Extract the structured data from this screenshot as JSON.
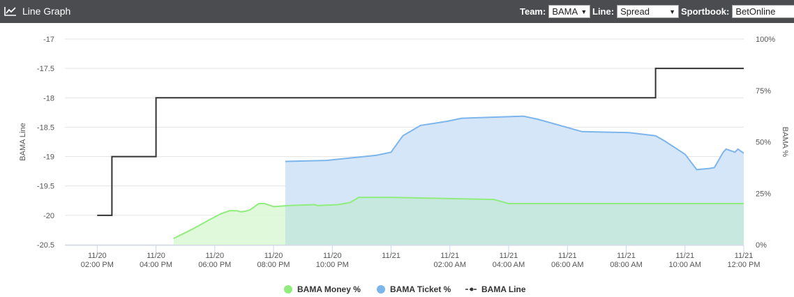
{
  "header": {
    "title": "Line Graph",
    "team_label": "Team:",
    "team_value": "BAMA",
    "line_label": "Line:",
    "line_value": "Spread",
    "sportsbook_label": "Sportbook:",
    "sportsbook_value": "BetOnline"
  },
  "colors": {
    "header_bg": "#4a4c50",
    "money": "#90ed7d",
    "money_fill": "#daf8d4",
    "ticket": "#7cb5ec",
    "ticket_fill": "#d4e6f8",
    "overlap_fill": "#c6e8df",
    "line": "#333333"
  },
  "chart_data": {
    "type": "line",
    "ylabel_left": "BAMA Line",
    "ylabel_right": "BAMA %",
    "y_left_ticks": [
      "-17",
      "-17.5",
      "-18",
      "-18.5",
      "-19",
      "-19.5",
      "-20",
      "-20.5"
    ],
    "y_left_range": [
      -20.5,
      -17
    ],
    "y_right_ticks": [
      "100%",
      "75%",
      "50%",
      "25%",
      "0%"
    ],
    "y_right_range": [
      0,
      100
    ],
    "x_range_hours": [
      12.9,
      36.0
    ],
    "x_ticks": [
      {
        "date": "11/20",
        "time": "02:00 PM",
        "h": 14
      },
      {
        "date": "11/20",
        "time": "04:00 PM",
        "h": 16
      },
      {
        "date": "11/20",
        "time": "06:00 PM",
        "h": 18
      },
      {
        "date": "11/20",
        "time": "08:00 PM",
        "h": 20
      },
      {
        "date": "11/20",
        "time": "10:00 PM",
        "h": 22
      },
      {
        "date": "11/21",
        "time": "",
        "h": 24
      },
      {
        "date": "11/21",
        "time": "02:00 AM",
        "h": 26
      },
      {
        "date": "11/21",
        "time": "04:00 AM",
        "h": 28
      },
      {
        "date": "11/21",
        "time": "06:00 AM",
        "h": 30
      },
      {
        "date": "11/21",
        "time": "08:00 AM",
        "h": 32
      },
      {
        "date": "11/21",
        "time": "10:00 AM",
        "h": 34
      },
      {
        "date": "11/21",
        "time": "12:00 PM",
        "h": 36
      }
    ],
    "series": [
      {
        "name": "BAMA Money %",
        "axis": "right",
        "points": [
          [
            16.6,
            3
          ],
          [
            17.3,
            8
          ],
          [
            17.8,
            12
          ],
          [
            18.2,
            15
          ],
          [
            18.5,
            16.5
          ],
          [
            18.75,
            16.5
          ],
          [
            18.9,
            16
          ],
          [
            19.05,
            16.3
          ],
          [
            19.2,
            17
          ],
          [
            19.5,
            20
          ],
          [
            19.7,
            20
          ],
          [
            20.0,
            18.5
          ],
          [
            20.5,
            19
          ],
          [
            21.4,
            19.5
          ],
          [
            21.5,
            19
          ],
          [
            22.2,
            19.5
          ],
          [
            22.6,
            20.5
          ],
          [
            22.9,
            23
          ],
          [
            24.0,
            23
          ],
          [
            27.5,
            22
          ],
          [
            28.0,
            20
          ],
          [
            36.0,
            20
          ]
        ]
      },
      {
        "name": "BAMA Ticket %",
        "axis": "right",
        "points": [
          [
            20.4,
            40.5
          ],
          [
            21.8,
            41
          ],
          [
            23.5,
            43.5
          ],
          [
            24.0,
            45
          ],
          [
            24.4,
            53
          ],
          [
            25.0,
            58
          ],
          [
            25.9,
            60
          ],
          [
            26.4,
            61.5
          ],
          [
            28.5,
            62.5
          ],
          [
            29.0,
            61
          ],
          [
            30.5,
            55
          ],
          [
            32.1,
            54.5
          ],
          [
            33.0,
            53
          ],
          [
            33.3,
            50.5
          ],
          [
            34.0,
            44
          ],
          [
            34.4,
            36.5
          ],
          [
            34.8,
            37
          ],
          [
            35.0,
            37.5
          ],
          [
            35.3,
            45
          ],
          [
            35.4,
            46.5
          ],
          [
            35.5,
            46
          ],
          [
            35.7,
            45
          ],
          [
            35.8,
            46.5
          ],
          [
            35.9,
            45.5
          ],
          [
            36.0,
            44.5
          ]
        ]
      },
      {
        "name": "BAMA Line",
        "axis": "left",
        "step": true,
        "points": [
          [
            14.0,
            -20
          ],
          [
            14.5,
            -19
          ],
          [
            16.0,
            -18
          ],
          [
            33.0,
            -17.5
          ],
          [
            36.0,
            -17.5
          ]
        ]
      }
    ],
    "legend": [
      "BAMA Money %",
      "BAMA Ticket %",
      "BAMA Line"
    ],
    "legend_position": "bottom-center"
  }
}
